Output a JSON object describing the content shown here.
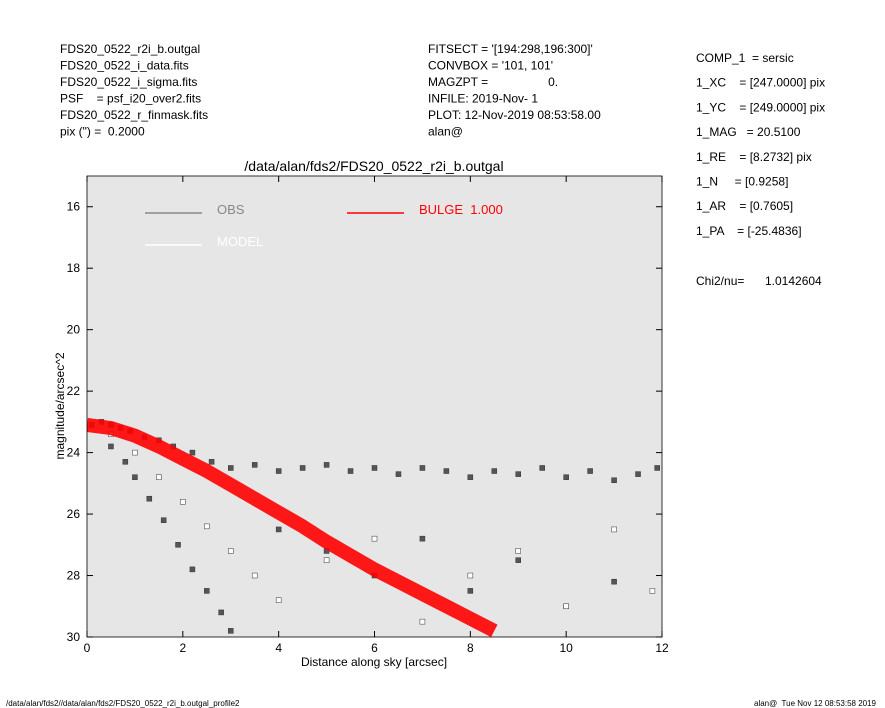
{
  "chart_data": {
    "type": "scatter",
    "title": "/data/alan/fds2/FDS20_0522_r2i_b.outgal",
    "x_label": "Distance along sky [arcsec]",
    "y_label": "magnitude/arcsec^2",
    "xlim": [
      0,
      12
    ],
    "xticks": [
      0,
      2,
      4,
      6,
      8,
      10,
      12
    ],
    "ylim": [
      30,
      15
    ],
    "yticks": [
      16,
      18,
      20,
      22,
      24,
      26,
      28,
      30
    ],
    "plot_background": "#e6e6e6",
    "header_left": [
      "FDS20_0522_r2i_b.outgal",
      "FDS20_0522_i_data.fits",
      "FDS20_0522_i_sigma.fits",
      "PSF    = psf_i20_over2.fits",
      "FDS20_0522_r_finmask.fits",
      "pix (\") =  0.2000"
    ],
    "header_middle": [
      "FITSECT = '[194:298,196:300]'",
      "CONVBOX = '101, 101'",
      "MAGZPT =                  0.",
      "INFILE: 2019-Nov- 1",
      "PLOT: 12-Nov-2019 08:53:58.00",
      "alan@"
    ],
    "params": [
      "COMP_1  = sersic",
      "1_XC    = [247.0000] pix",
      "1_YC    = [249.0000] pix",
      "1_MAG   = 20.5100",
      "1_RE    = [8.2732] pix",
      "1_N     = [0.9258]",
      "1_AR    = [0.7605]",
      "1_PA    = [-25.4836]"
    ],
    "chi2_label": "Chi2/nu=",
    "chi2_value": "1.0142604",
    "footer_left": "/data/alan/fds2//data/alan/fds2/FDS20_0522_r2i_b.outgal_profile2",
    "footer_right": "alan@  Tue Nov 12 08:53:58 2019",
    "series": [
      {
        "name": "OBS",
        "color": "#555555",
        "legend_color": "#888888",
        "kind": "points",
        "x": [
          0.1,
          0.3,
          0.5,
          0.7,
          0.9,
          1.2,
          1.5,
          1.8,
          2.2,
          2.6,
          3.0,
          3.5,
          4.0,
          4.5,
          5.0,
          5.5,
          6.0,
          6.5,
          7.0,
          7.5,
          8.0,
          8.5,
          9.0,
          9.5,
          10.0,
          10.5,
          11.0,
          11.5,
          11.9,
          0.5,
          0.8,
          1.0,
          1.3,
          1.6,
          1.9,
          2.2,
          2.5,
          2.8,
          3.0,
          4.0,
          5.0,
          6.0,
          7.0,
          8.0,
          9.0,
          10.0,
          11.0
        ],
        "values": [
          23.1,
          23.0,
          23.1,
          23.2,
          23.3,
          23.5,
          23.6,
          23.8,
          24.0,
          24.3,
          24.5,
          24.4,
          24.6,
          24.5,
          24.4,
          24.6,
          24.5,
          24.7,
          24.5,
          24.6,
          24.8,
          24.6,
          24.7,
          24.5,
          24.8,
          24.6,
          24.9,
          24.7,
          24.5,
          23.8,
          24.3,
          24.8,
          25.5,
          26.2,
          27.0,
          27.8,
          28.5,
          29.2,
          29.8,
          26.5,
          27.2,
          28.0,
          26.8,
          28.5,
          27.5,
          29.0,
          28.2
        ]
      },
      {
        "name": "MODEL",
        "color": "#ffffff",
        "legend_color": "#ffffff",
        "kind": "points",
        "x": [
          0.5,
          1.0,
          1.5,
          2.0,
          2.5,
          3.0,
          3.5,
          4.0,
          5.0,
          6.0,
          7.0,
          8.0,
          9.0,
          10.0,
          11.0,
          11.8
        ],
        "values": [
          23.4,
          24.0,
          24.8,
          25.6,
          26.4,
          27.2,
          28.0,
          28.8,
          27.5,
          26.8,
          29.5,
          28.0,
          27.2,
          29.0,
          26.5,
          28.5
        ]
      },
      {
        "name": "BULGE  1.000",
        "color": "#ff0000",
        "legend_color": "#ff0000",
        "kind": "line",
        "x": [
          0,
          0.5,
          1.0,
          1.5,
          2.0,
          2.5,
          3.0,
          3.5,
          4.0,
          4.5,
          5.0,
          5.5,
          6.0,
          6.5,
          7.0,
          7.5,
          8.0,
          8.5
        ],
        "values": [
          23.1,
          23.2,
          23.45,
          23.8,
          24.2,
          24.6,
          25.05,
          25.5,
          25.95,
          26.4,
          26.9,
          27.35,
          27.8,
          28.2,
          28.6,
          29.0,
          29.4,
          29.8
        ]
      }
    ]
  }
}
